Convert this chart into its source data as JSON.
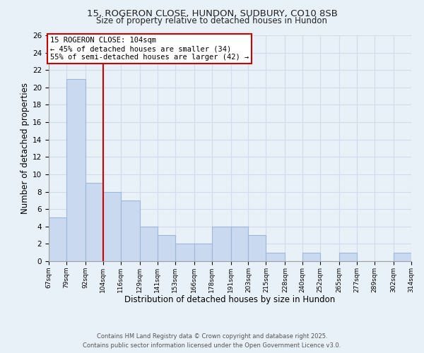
{
  "title_line1": "15, ROGERON CLOSE, HUNDON, SUDBURY, CO10 8SB",
  "title_line2": "Size of property relative to detached houses in Hundon",
  "xlabel": "Distribution of detached houses by size in Hundon",
  "ylabel": "Number of detached properties",
  "bin_edges": [
    67,
    79,
    92,
    104,
    116,
    129,
    141,
    153,
    166,
    178,
    191,
    203,
    215,
    228,
    240,
    252,
    265,
    277,
    289,
    302,
    314
  ],
  "counts": [
    5,
    21,
    9,
    8,
    7,
    4,
    3,
    2,
    2,
    4,
    4,
    3,
    1,
    0,
    1,
    0,
    1,
    0,
    0,
    1
  ],
  "bar_color": "#c8d9f0",
  "bar_edge_color": "#a0b8d8",
  "redline_x": 104,
  "ylim": [
    0,
    26
  ],
  "yticks": [
    0,
    2,
    4,
    6,
    8,
    10,
    12,
    14,
    16,
    18,
    20,
    22,
    24,
    26
  ],
  "annotation_title": "15 ROGERON CLOSE: 104sqm",
  "annotation_line1": "← 45% of detached houses are smaller (34)",
  "annotation_line2": "55% of semi-detached houses are larger (42) →",
  "annotation_box_color": "#ffffff",
  "annotation_box_edge": "#cc0000",
  "footer_line1": "Contains HM Land Registry data © Crown copyright and database right 2025.",
  "footer_line2": "Contains public sector information licensed under the Open Government Licence v3.0.",
  "tick_labels": [
    "67sqm",
    "79sqm",
    "92sqm",
    "104sqm",
    "116sqm",
    "129sqm",
    "141sqm",
    "153sqm",
    "166sqm",
    "178sqm",
    "191sqm",
    "203sqm",
    "215sqm",
    "228sqm",
    "240sqm",
    "252sqm",
    "265sqm",
    "277sqm",
    "289sqm",
    "302sqm",
    "314sqm"
  ],
  "grid_color": "#d0dce8",
  "background_color": "#e8f0f8"
}
